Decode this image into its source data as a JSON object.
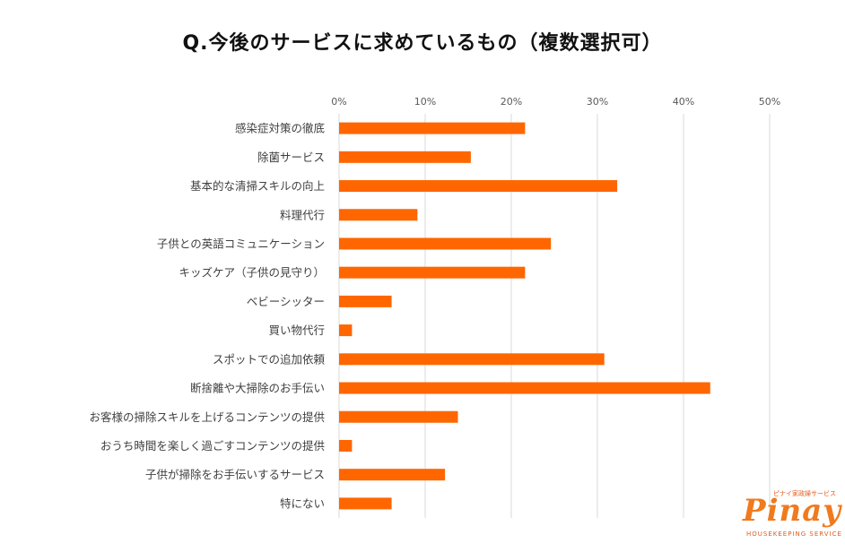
{
  "chart_data": {
    "type": "bar",
    "orientation": "horizontal",
    "title": "Q.今後のサービスに求めているもの（複数選択可）",
    "xlim": [
      0,
      50
    ],
    "x_ticks": [
      "0%",
      "10%",
      "20%",
      "30%",
      "40%",
      "50%"
    ],
    "x_tick_values": [
      0,
      10,
      20,
      30,
      40,
      50
    ],
    "grid": true,
    "legend": "none",
    "bar_color": "#ff6600",
    "categories": [
      "感染症対策の徹底",
      "除菌サービス",
      "基本的な清掃スキルの向上",
      "料理代行",
      "子供との英語コミュニケーション",
      "キッズケア（子供の見守り）",
      "ベビーシッター",
      "買い物代行",
      "スポットでの追加依頼",
      "断捨離や大掃除のお手伝い",
      "お客様の掃除スキルを上げるコンテンツの提供",
      "おうち時間を楽しく過ごすコンテンツの提供",
      "子供が掃除をお手伝いするサービス",
      "特にない"
    ],
    "values": [
      21.6,
      15.3,
      32.3,
      9.1,
      24.6,
      21.6,
      6.1,
      1.5,
      30.8,
      43.1,
      13.8,
      1.5,
      12.3,
      6.1
    ]
  },
  "logo": {
    "sub": "ピナイ家政婦サービス",
    "main": "Pinay",
    "tagline": "HOUSEKEEPING SERVICE",
    "color": "#f07a1e"
  }
}
